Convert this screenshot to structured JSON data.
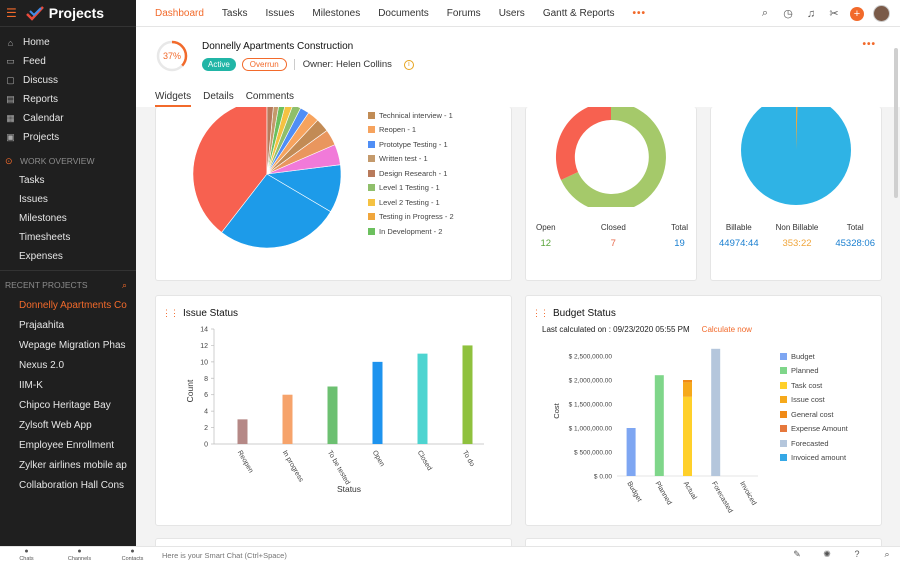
{
  "brand": {
    "title": "Projects"
  },
  "sidebar": {
    "main": [
      {
        "label": "Home",
        "icon": "home-icon",
        "glyph": "⌂"
      },
      {
        "label": "Feed",
        "icon": "feed-icon",
        "glyph": "▭"
      },
      {
        "label": "Discuss",
        "icon": "discuss-icon",
        "glyph": "▢"
      },
      {
        "label": "Reports",
        "icon": "reports-icon",
        "glyph": "▤"
      },
      {
        "label": "Calendar",
        "icon": "calendar-icon",
        "glyph": "▦"
      },
      {
        "label": "Projects",
        "icon": "projects-icon",
        "glyph": "▣"
      }
    ],
    "work_overview": {
      "title": "WORK OVERVIEW",
      "items": [
        "Tasks",
        "Issues",
        "Milestones",
        "Timesheets",
        "Expenses"
      ]
    },
    "recent_projects": {
      "title": "RECENT PROJECTS",
      "items": [
        "Donnelly Apartments Co",
        "Prajaahita",
        "Wepage Migration Phas",
        "Nexus 2.0",
        "IIM-K",
        "Chipco Heritage Bay",
        "Zylsoft Web App",
        "Employee Enrollment",
        "Zylker airlines mobile ap",
        "Collaboration Hall Cons"
      ]
    }
  },
  "topnav": {
    "items": [
      "Dashboard",
      "Tasks",
      "Issues",
      "Milestones",
      "Documents",
      "Forums",
      "Users",
      "Gantt & Reports"
    ],
    "more": "•••"
  },
  "project": {
    "progress": 37,
    "progress_label": "37%",
    "title": "Donnelly Apartments Construction",
    "status": "Active",
    "flag": "Overrun",
    "owner": "Owner: Helen Collins",
    "more": "•••"
  },
  "tabs": [
    "Widgets",
    "Details",
    "Comments"
  ],
  "pie_widget": {
    "colors": {
      "big_red": "#f76150",
      "blue": "#1d9be9"
    },
    "legend": [
      {
        "label": "Technical interview - 1",
        "color": "#c18c55"
      },
      {
        "label": "Reopen - 1",
        "color": "#f6a35e"
      },
      {
        "label": "Prototype Testing - 1",
        "color": "#4f8ef5"
      },
      {
        "label": "Written test - 1",
        "color": "#c49a6c"
      },
      {
        "label": "Design Research - 1",
        "color": "#b87a5b"
      },
      {
        "label": "Level 1 Testing - 1",
        "color": "#8fbf6b"
      },
      {
        "label": "Level 2 Testing - 1",
        "color": "#f5c242"
      },
      {
        "label": "Testing in Progress - 2",
        "color": "#f0a63c"
      },
      {
        "label": "In Development - 2",
        "color": "#6cc05e"
      }
    ]
  },
  "donut_widget": {
    "stats": [
      {
        "label": "Open",
        "value": "12",
        "color": "#5aa53c"
      },
      {
        "label": "Closed",
        "value": "7",
        "color": "#e8684a"
      },
      {
        "label": "Total",
        "value": "19",
        "color": "#1a7fd0"
      }
    ]
  },
  "billing_widget": {
    "stats": [
      {
        "label": "Billable",
        "value": "44974:44",
        "color": "#1a7fd0"
      },
      {
        "label": "Non Billable",
        "value": "353:22",
        "color": "#f0a63c"
      },
      {
        "label": "Total",
        "value": "45328:06",
        "color": "#1a7fd0"
      }
    ]
  },
  "issue_status": {
    "title": "Issue Status",
    "chart_data": {
      "type": "bar",
      "categories": [
        "Reopen",
        "In progress",
        "To be tested",
        "Open",
        "Closed",
        "To do"
      ],
      "values": [
        3,
        6,
        7,
        10,
        11,
        12
      ],
      "colors": [
        "#b58886",
        "#f6a36b",
        "#6cc071",
        "#1e93ee",
        "#4dd4d0",
        "#8fc13e"
      ],
      "xlabel": "Status",
      "ylabel": "Count",
      "yticks": [
        "0",
        "2",
        "4",
        "6",
        "8",
        "10",
        "12",
        "14"
      ],
      "ylim": [
        0,
        14
      ]
    }
  },
  "budget_status": {
    "title": "Budget Status",
    "last_calc": "Last calculated on : 09/23/2020 05:55 PM",
    "calc_now": "Calculate now",
    "chart_data": {
      "type": "bar",
      "categories": [
        "Budget",
        "Planned",
        "Actual",
        "Forecasted",
        "Invoiced"
      ],
      "ylabel": "Cost",
      "yticks": [
        "$ 0.00",
        "$ 500,000.00",
        "$ 1,000,000.00",
        "$ 1,500,000.00",
        "$ 2,000,000.00",
        "$ 2,500,000.00"
      ],
      "ylim": [
        0,
        2500000
      ],
      "bars": [
        {
          "category": "Budget",
          "segments": [
            {
              "series": "Budget",
              "value": 1000000
            }
          ]
        },
        {
          "category": "Planned",
          "segments": [
            {
              "series": "Planned",
              "value": 2100000
            }
          ]
        },
        {
          "category": "Actual",
          "segments": [
            {
              "series": "Task cost",
              "value": 1650000
            },
            {
              "series": "Issue cost",
              "value": 300000
            },
            {
              "series": "General cost",
              "value": 50000
            }
          ]
        },
        {
          "category": "Forecasted",
          "segments": [
            {
              "series": "Forecasted",
              "value": 2650000
            }
          ]
        },
        {
          "category": "Invoiced",
          "segments": []
        }
      ],
      "legend": [
        {
          "label": "Budget",
          "color": "#7ea6f2"
        },
        {
          "label": "Planned",
          "color": "#7fd68a"
        },
        {
          "label": "Task cost",
          "color": "#ffd02a"
        },
        {
          "label": "Issue cost",
          "color": "#f6a91b"
        },
        {
          "label": "General cost",
          "color": "#f08a17"
        },
        {
          "label": "Expense Amount",
          "color": "#e6783c"
        },
        {
          "label": "Forecasted",
          "color": "#b4c6dc"
        },
        {
          "label": "Invoiced amount",
          "color": "#35a8e6"
        }
      ]
    }
  },
  "bottombar": {
    "items": [
      {
        "label": "Chats",
        "icon": "chats-icon"
      },
      {
        "label": "Channels",
        "icon": "channels-icon"
      },
      {
        "label": "Contacts",
        "icon": "contacts-icon"
      }
    ],
    "chat_placeholder": "Here is your Smart Chat (Ctrl+Space)"
  }
}
